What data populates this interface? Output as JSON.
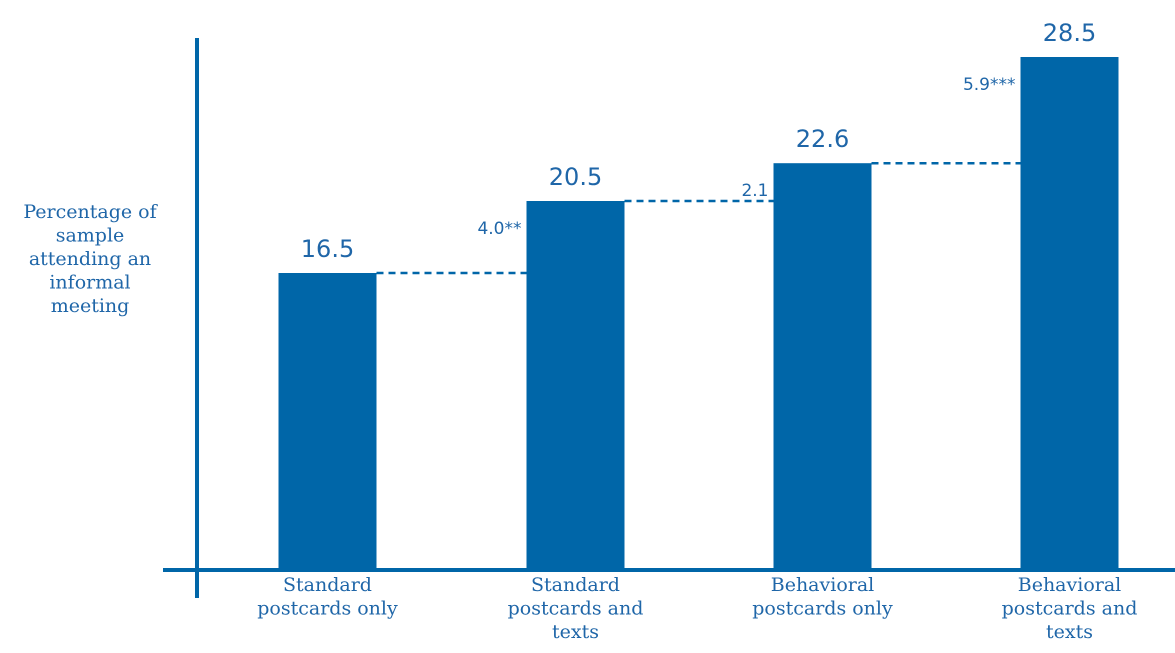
{
  "colors": {
    "bar": "#0066a8",
    "axis": "#0066a8",
    "text": "#1f66a8"
  },
  "chart_data": {
    "type": "bar",
    "title": "",
    "ylabel": "Percentage of sample attending an informal meeting",
    "ylabel_lines": [
      "Percentage of",
      "sample",
      "attending an",
      "informal",
      "meeting"
    ],
    "xlabel": "",
    "ylim": [
      0,
      30
    ],
    "grid": false,
    "categories": [
      {
        "lines": [
          "Standard",
          "postcards only"
        ]
      },
      {
        "lines": [
          "Standard",
          "postcards and",
          "texts"
        ]
      },
      {
        "lines": [
          "Behavioral",
          "postcards only"
        ]
      },
      {
        "lines": [
          "Behavioral",
          "postcards and",
          "texts"
        ]
      }
    ],
    "values": [
      16.5,
      20.5,
      22.6,
      28.5
    ],
    "value_labels": [
      "16.5",
      "20.5",
      "22.6",
      "28.5"
    ],
    "differences": [
      {
        "from": 0,
        "to": 1,
        "label": "4.0**"
      },
      {
        "from": 1,
        "to": 2,
        "label": "2.1"
      },
      {
        "from": 2,
        "to": 3,
        "label": "5.9***"
      }
    ]
  }
}
